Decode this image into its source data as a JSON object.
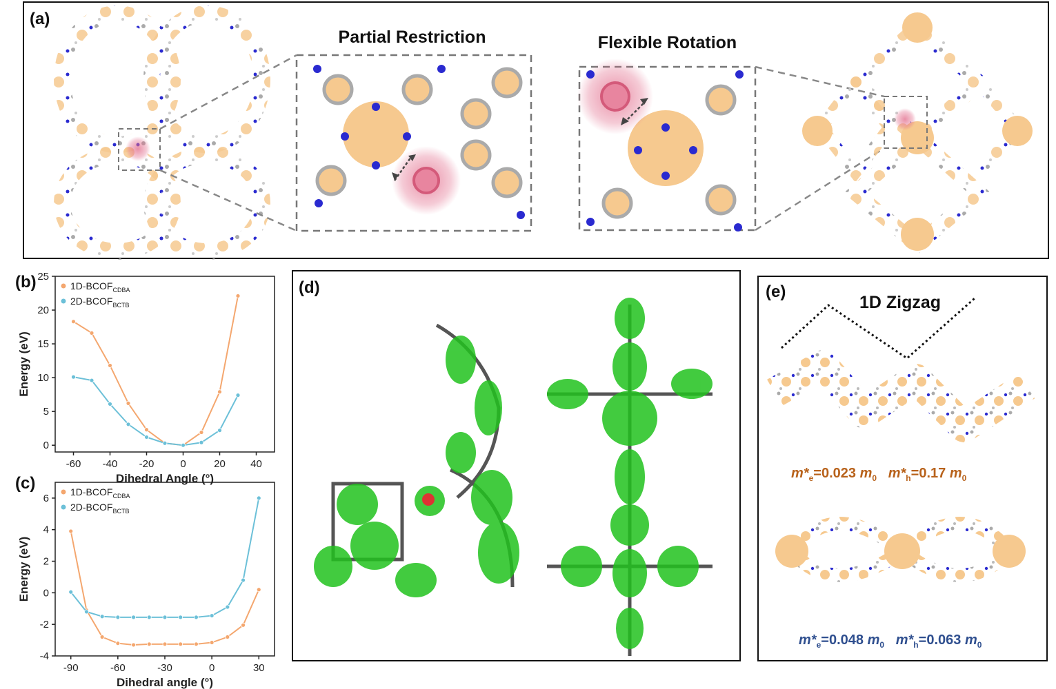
{
  "panel_a": {
    "label": "(a)",
    "heading_left": "Partial Restriction",
    "heading_right": "Flexible Rotation"
  },
  "panel_b": {
    "label": "(b)"
  },
  "panel_c": {
    "label": "(c)"
  },
  "panel_d": {
    "label": "(d)"
  },
  "panel_e": {
    "label": "(e)",
    "heading": "1D Zigzag",
    "mass_1d": {
      "me_prefix": "m*",
      "me_sub": "e",
      "me_value": "=0.023 ",
      "m0": "m",
      "m0_sub": "0",
      "mh_prefix": "m*",
      "mh_sub": "h",
      "mh_value": "=0.17 "
    },
    "mass_2d": {
      "me_prefix": "m*",
      "me_sub": "e",
      "me_value": "=0.048 ",
      "m0": "m",
      "m0_sub": "0",
      "mh_prefix": "m*",
      "mh_sub": "h",
      "mh_value": "=0.063 "
    },
    "color_1d": "#b8621b",
    "color_2d": "#2f4f8f"
  },
  "colors": {
    "orange": "#f4a76f",
    "blue": "#6cc0d8",
    "node": "#f6c98f",
    "nitrogen": "#2a2ad0",
    "highlight": "#e26a8a",
    "isosurface": "#22c21e"
  },
  "chart_data": [
    {
      "type": "line",
      "id": "b",
      "xlabel": "Dihedral Angle (°)",
      "ylabel": "Energy (eV)",
      "xlim": [
        -70,
        50
      ],
      "ylim": [
        -1,
        25
      ],
      "xticks": [
        -60,
        -40,
        -20,
        0,
        20,
        40
      ],
      "yticks": [
        0,
        5,
        10,
        15,
        20,
        25
      ],
      "legend": "top-left",
      "series": [
        {
          "name_main": "1D-BCOF",
          "name_sub": "CDBA",
          "color": "#f4a76f",
          "x": [
            -60,
            -50,
            -40,
            -30,
            -20,
            -10,
            0,
            10,
            20,
            30
          ],
          "y": [
            18.3,
            16.6,
            11.8,
            6.2,
            2.3,
            0.3,
            0.0,
            1.9,
            7.9,
            22.1
          ]
        },
        {
          "name_main": "2D-BCOF",
          "name_sub": "BCTB",
          "color": "#6cc0d8",
          "x": [
            -60,
            -50,
            -40,
            -30,
            -20,
            -10,
            0,
            10,
            20,
            30
          ],
          "y": [
            10.1,
            9.6,
            6.1,
            3.1,
            1.2,
            0.3,
            0.0,
            0.4,
            2.2,
            7.4
          ]
        }
      ]
    },
    {
      "type": "line",
      "id": "c",
      "xlabel": "Dihedral angle (°)",
      "ylabel": "Energy (eV)",
      "xlim": [
        -100,
        40
      ],
      "ylim": [
        -4,
        7
      ],
      "xticks": [
        -90,
        -60,
        -30,
        0,
        30
      ],
      "yticks": [
        -4,
        -2,
        0,
        2,
        4,
        6
      ],
      "legend": "top-left",
      "series": [
        {
          "name_main": "1D-BCOF",
          "name_sub": "CDBA",
          "color": "#f4a76f",
          "x": [
            -90,
            -80,
            -70,
            -60,
            -50,
            -40,
            -30,
            -20,
            -10,
            0,
            10,
            20,
            30
          ],
          "y": [
            3.9,
            -1.1,
            -2.8,
            -3.2,
            -3.3,
            -3.25,
            -3.25,
            -3.25,
            -3.25,
            -3.15,
            -2.8,
            -2.05,
            0.2
          ]
        },
        {
          "name_main": "2D-BCOF",
          "name_sub": "BCTB",
          "color": "#6cc0d8",
          "x": [
            -90,
            -80,
            -70,
            -60,
            -50,
            -40,
            -30,
            -20,
            -10,
            0,
            10,
            20,
            30
          ],
          "y": [
            0.05,
            -1.2,
            -1.5,
            -1.55,
            -1.55,
            -1.55,
            -1.55,
            -1.55,
            -1.55,
            -1.45,
            -0.9,
            0.8,
            6.0
          ]
        }
      ]
    }
  ]
}
